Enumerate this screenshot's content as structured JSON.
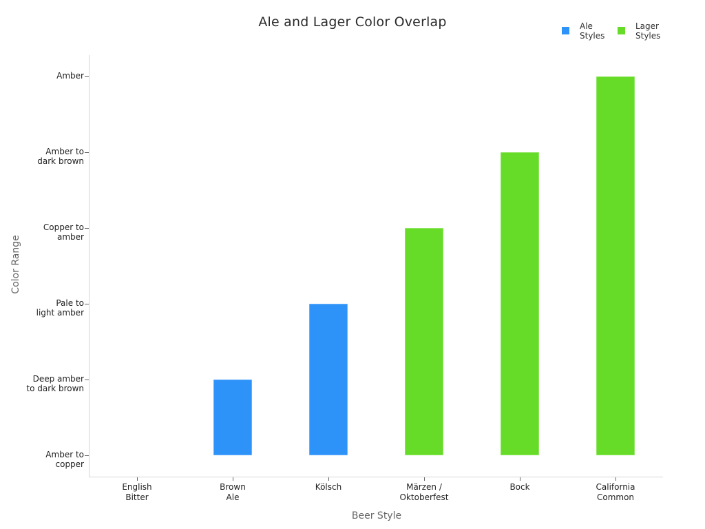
{
  "chart_data": {
    "type": "bar",
    "subtype": "floating-range",
    "title": "Ale and Lager Color Overlap",
    "xlabel": "Beer Style",
    "ylabel": "Color Range",
    "categories": [
      "English\nBitter",
      "Brown\nAle",
      "Kölsch",
      "Märzen /\nOktoberfest",
      "Bock",
      "California\nCommon"
    ],
    "y_categories": [
      "Amber to\ncopper",
      "Deep amber\nto dark brown",
      "Pale to\nlight amber",
      "Copper to\namber",
      "Amber to\ndark brown",
      "Amber"
    ],
    "series": [
      {
        "name": "Ale\nStyles",
        "color": "#2e93f9",
        "categories": [
          "English Bitter",
          "Brown Ale",
          "Kölsch"
        ],
        "base": [
          0,
          0,
          0
        ],
        "values": [
          0,
          1,
          2
        ]
      },
      {
        "name": "Lager\nStyles",
        "color": "#67dc28",
        "categories": [
          "Märzen / Oktoberfest",
          "Bock",
          "California Common"
        ],
        "base": [
          0,
          0,
          0
        ],
        "values": [
          3,
          4,
          5
        ]
      }
    ],
    "ylim": [
      -0.27,
      5.27
    ],
    "grid": false,
    "legend_position": "top-right"
  },
  "colors": {
    "ale": "#2e93f9",
    "lager": "#67dc28",
    "axis": "#d6d6d6",
    "tick": "#666666"
  }
}
